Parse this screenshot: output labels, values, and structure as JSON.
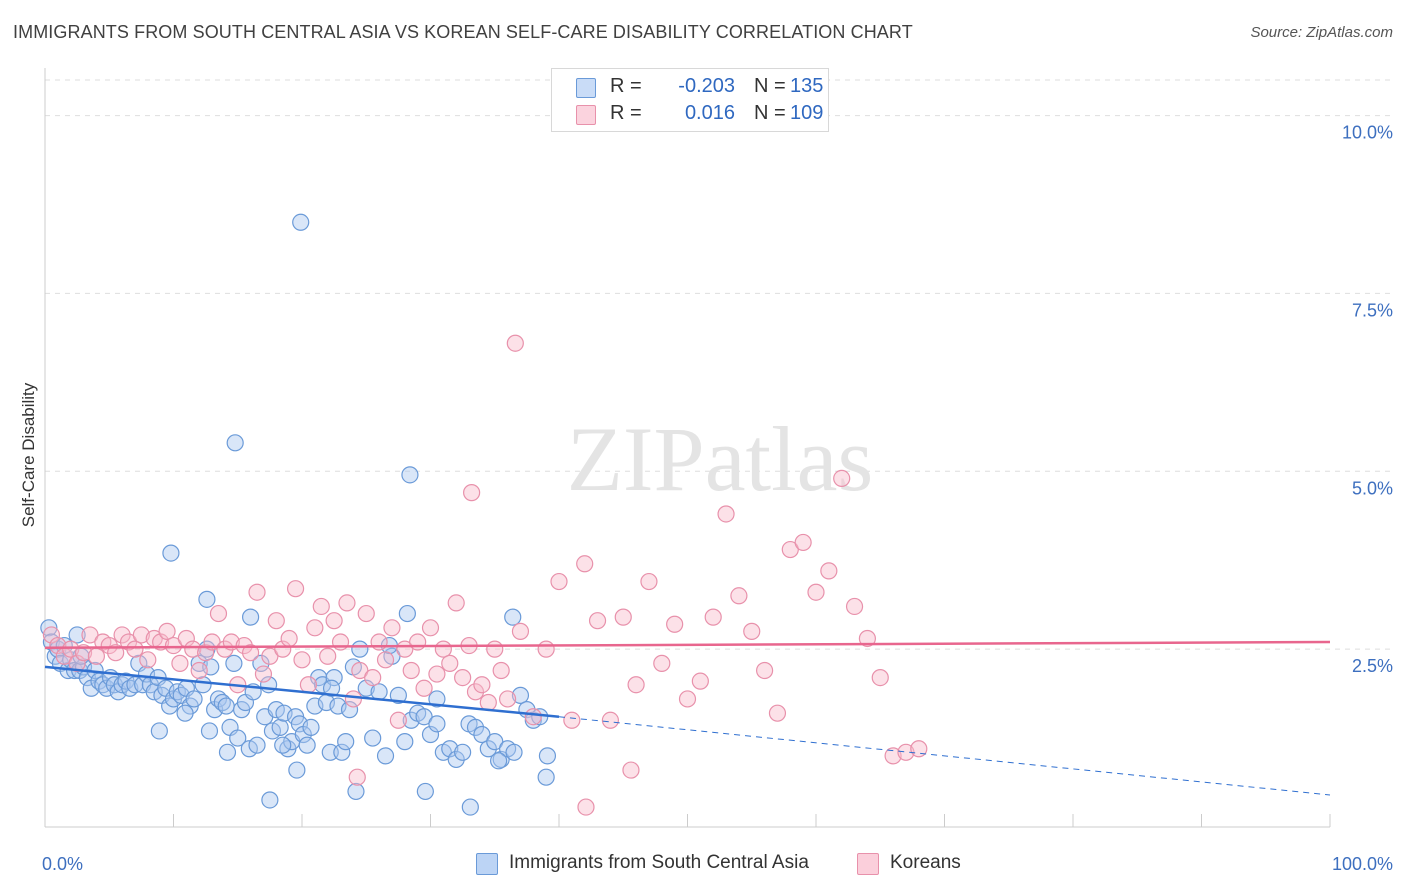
{
  "title": "IMMIGRANTS FROM SOUTH CENTRAL ASIA VS KOREAN SELF-CARE DISABILITY CORRELATION CHART",
  "source": "Source: ZipAtlas.com",
  "watermark": "ZIPatlas",
  "legend": {
    "r_label": "R =",
    "n_label": "N =",
    "rows": [
      {
        "r": "-0.203",
        "n": "135",
        "color": "#aac8f0",
        "border": "#6a9ad8"
      },
      {
        "r": "0.016",
        "n": "109",
        "color": "#f8bccd",
        "border": "#e891ab"
      }
    ]
  },
  "bottom_legend": [
    {
      "label": "Immigrants from South Central Asia",
      "color": "#bcd4f5",
      "border": "#6a9ad8"
    },
    {
      "label": "Koreans",
      "color": "#fbcfdb",
      "border": "#e891ab"
    }
  ],
  "chart_data": {
    "type": "scatter",
    "ylabel": "Self-Care Disability",
    "xlabel": "",
    "xlim": [
      0,
      100
    ],
    "ylim": [
      0,
      10.5
    ],
    "x_ticks": [
      "0.0%",
      "100.0%"
    ],
    "y_ticks": [
      {
        "value": 2.5,
        "label": "2.5%"
      },
      {
        "value": 5.0,
        "label": "5.0%"
      },
      {
        "value": 7.5,
        "label": "7.5%"
      },
      {
        "value": 10.0,
        "label": "10.0%"
      }
    ],
    "grid": true,
    "series": [
      {
        "name": "Immigrants from South Central Asia",
        "color": "#6a9ad8",
        "fill": "#aac8f0",
        "trend": {
          "x0": 0,
          "y0": 2.25,
          "x1": 40,
          "y1": 1.55,
          "x_end": 100,
          "y_end": 0.45
        },
        "points": [
          [
            0.3,
            2.8
          ],
          [
            0.5,
            2.6
          ],
          [
            0.8,
            2.4
          ],
          [
            1.0,
            2.5
          ],
          [
            1.2,
            2.3
          ],
          [
            1.5,
            2.55
          ],
          [
            1.8,
            2.2
          ],
          [
            2.0,
            2.35
          ],
          [
            2.3,
            2.2
          ],
          [
            2.5,
            2.7
          ],
          [
            2.7,
            2.2
          ],
          [
            3.0,
            2.25
          ],
          [
            2.8,
            2.4
          ],
          [
            3.3,
            2.1
          ],
          [
            3.6,
            1.95
          ],
          [
            3.9,
            2.2
          ],
          [
            4.2,
            2.05
          ],
          [
            4.5,
            2.0
          ],
          [
            4.8,
            1.95
          ],
          [
            5.1,
            2.1
          ],
          [
            5.4,
            2.0
          ],
          [
            5.7,
            1.9
          ],
          [
            6.0,
            2.0
          ],
          [
            6.3,
            2.05
          ],
          [
            6.6,
            1.95
          ],
          [
            7.0,
            2.0
          ],
          [
            7.3,
            2.3
          ],
          [
            7.6,
            2.0
          ],
          [
            7.9,
            2.15
          ],
          [
            8.2,
            2.0
          ],
          [
            8.5,
            1.9
          ],
          [
            8.8,
            2.1
          ],
          [
            9.1,
            1.85
          ],
          [
            9.4,
            1.95
          ],
          [
            9.7,
            1.7
          ],
          [
            10.0,
            1.8
          ],
          [
            10.3,
            1.9
          ],
          [
            10.6,
            1.85
          ],
          [
            11.0,
            1.95
          ],
          [
            11.3,
            1.7
          ],
          [
            11.6,
            1.8
          ],
          [
            12.0,
            2.3
          ],
          [
            12.3,
            2.0
          ],
          [
            12.6,
            2.5
          ],
          [
            12.9,
            2.25
          ],
          [
            13.2,
            1.65
          ],
          [
            13.5,
            1.8
          ],
          [
            13.8,
            1.75
          ],
          [
            14.1,
            1.7
          ],
          [
            14.4,
            1.4
          ],
          [
            14.7,
            2.3
          ],
          [
            15.0,
            1.25
          ],
          [
            15.3,
            1.65
          ],
          [
            15.6,
            1.75
          ],
          [
            15.9,
            1.1
          ],
          [
            16.2,
            1.9
          ],
          [
            16.5,
            1.15
          ],
          [
            16.8,
            2.3
          ],
          [
            17.1,
            1.55
          ],
          [
            17.4,
            2.0
          ],
          [
            17.7,
            1.35
          ],
          [
            18.0,
            1.65
          ],
          [
            18.3,
            1.4
          ],
          [
            18.6,
            1.6
          ],
          [
            18.9,
            1.1
          ],
          [
            19.2,
            1.2
          ],
          [
            19.5,
            1.55
          ],
          [
            19.8,
            1.45
          ],
          [
            20.1,
            1.3
          ],
          [
            20.4,
            1.15
          ],
          [
            20.7,
            1.4
          ],
          [
            21.0,
            1.7
          ],
          [
            21.3,
            2.1
          ],
          [
            21.6,
            2.0
          ],
          [
            21.9,
            1.75
          ],
          [
            22.2,
            1.05
          ],
          [
            22.5,
            2.1
          ],
          [
            22.8,
            1.7
          ],
          [
            23.1,
            1.05
          ],
          [
            23.4,
            1.2
          ],
          [
            23.7,
            1.65
          ],
          [
            24.0,
            2.25
          ],
          [
            24.5,
            2.5
          ],
          [
            25.0,
            1.95
          ],
          [
            25.5,
            1.25
          ],
          [
            26.0,
            1.9
          ],
          [
            26.5,
            1.0
          ],
          [
            27.0,
            2.4
          ],
          [
            27.5,
            1.85
          ],
          [
            28.0,
            1.2
          ],
          [
            28.5,
            1.5
          ],
          [
            29.0,
            1.6
          ],
          [
            29.5,
            1.55
          ],
          [
            30.0,
            1.3
          ],
          [
            30.5,
            1.45
          ],
          [
            31.0,
            1.05
          ],
          [
            31.5,
            1.1
          ],
          [
            32.0,
            0.95
          ],
          [
            32.5,
            1.05
          ],
          [
            33.0,
            1.45
          ],
          [
            33.5,
            1.4
          ],
          [
            34.0,
            1.3
          ],
          [
            34.5,
            1.1
          ],
          [
            35.0,
            1.2
          ],
          [
            35.5,
            0.95
          ],
          [
            36.0,
            1.1
          ],
          [
            36.5,
            1.05
          ],
          [
            37.0,
            1.85
          ],
          [
            37.5,
            1.65
          ],
          [
            38.0,
            1.5
          ],
          [
            38.5,
            1.55
          ],
          [
            39.0,
            0.7
          ],
          [
            8.9,
            1.35
          ],
          [
            10.9,
            1.6
          ],
          [
            12.8,
            1.35
          ],
          [
            14.2,
            1.05
          ],
          [
            16.0,
            2.95
          ],
          [
            18.5,
            1.15
          ],
          [
            19.6,
            0.8
          ],
          [
            24.2,
            0.5
          ],
          [
            29.6,
            0.5
          ],
          [
            33.1,
            0.28
          ],
          [
            35.3,
            0.93
          ],
          [
            39.1,
            1.0
          ],
          [
            17.5,
            0.38
          ],
          [
            12.6,
            3.2
          ],
          [
            14.8,
            5.4
          ],
          [
            19.9,
            8.5
          ],
          [
            9.8,
            3.85
          ],
          [
            28.4,
            4.95
          ],
          [
            28.2,
            3.0
          ],
          [
            36.4,
            2.95
          ],
          [
            22.3,
            1.95
          ],
          [
            26.8,
            2.55
          ],
          [
            30.5,
            1.8
          ]
        ]
      },
      {
        "name": "Koreans",
        "color": "#e891ab",
        "fill": "#f8bccd",
        "trend": {
          "x0": 0,
          "y0": 2.52,
          "x1": 100,
          "y1": 2.6
        },
        "points": [
          [
            0.5,
            2.7
          ],
          [
            1.0,
            2.55
          ],
          [
            1.5,
            2.4
          ],
          [
            2.0,
            2.5
          ],
          [
            2.5,
            2.3
          ],
          [
            3.0,
            2.45
          ],
          [
            3.5,
            2.7
          ],
          [
            4.0,
            2.4
          ],
          [
            4.5,
            2.6
          ],
          [
            5.0,
            2.55
          ],
          [
            5.5,
            2.45
          ],
          [
            6.0,
            2.7
          ],
          [
            6.5,
            2.6
          ],
          [
            7.0,
            2.5
          ],
          [
            7.5,
            2.7
          ],
          [
            8.0,
            2.35
          ],
          [
            8.5,
            2.65
          ],
          [
            9.0,
            2.6
          ],
          [
            9.5,
            2.75
          ],
          [
            10.0,
            2.55
          ],
          [
            10.5,
            2.3
          ],
          [
            11.0,
            2.65
          ],
          [
            11.5,
            2.5
          ],
          [
            12.0,
            2.2
          ],
          [
            12.5,
            2.45
          ],
          [
            13.0,
            2.6
          ],
          [
            13.5,
            3.0
          ],
          [
            14.0,
            2.5
          ],
          [
            14.5,
            2.6
          ],
          [
            15.0,
            2.0
          ],
          [
            15.5,
            2.55
          ],
          [
            16.0,
            2.45
          ],
          [
            16.5,
            3.3
          ],
          [
            17.0,
            2.15
          ],
          [
            17.5,
            2.4
          ],
          [
            18.0,
            2.9
          ],
          [
            18.5,
            2.5
          ],
          [
            19.0,
            2.65
          ],
          [
            19.5,
            3.35
          ],
          [
            20.0,
            2.35
          ],
          [
            20.5,
            2.0
          ],
          [
            21.0,
            2.8
          ],
          [
            21.5,
            3.1
          ],
          [
            22.0,
            2.4
          ],
          [
            22.5,
            2.9
          ],
          [
            23.0,
            2.6
          ],
          [
            23.5,
            3.15
          ],
          [
            24.0,
            1.8
          ],
          [
            24.5,
            2.2
          ],
          [
            25.0,
            3.0
          ],
          [
            25.5,
            2.1
          ],
          [
            26.0,
            2.6
          ],
          [
            26.5,
            2.35
          ],
          [
            27.0,
            2.8
          ],
          [
            27.5,
            1.5
          ],
          [
            28.0,
            2.5
          ],
          [
            28.5,
            2.2
          ],
          [
            29.0,
            2.6
          ],
          [
            29.5,
            1.95
          ],
          [
            30.0,
            2.8
          ],
          [
            30.5,
            2.15
          ],
          [
            31.0,
            2.5
          ],
          [
            31.5,
            2.3
          ],
          [
            32.0,
            3.15
          ],
          [
            32.5,
            2.1
          ],
          [
            33.0,
            2.55
          ],
          [
            33.5,
            1.9
          ],
          [
            34.0,
            2.0
          ],
          [
            34.5,
            1.75
          ],
          [
            35.0,
            2.5
          ],
          [
            35.5,
            2.2
          ],
          [
            36.0,
            1.8
          ],
          [
            37.0,
            2.75
          ],
          [
            38.0,
            1.55
          ],
          [
            39.0,
            2.5
          ],
          [
            40.0,
            3.45
          ],
          [
            41.0,
            1.5
          ],
          [
            42.0,
            3.7
          ],
          [
            43.0,
            2.9
          ],
          [
            44.0,
            1.5
          ],
          [
            45.0,
            2.95
          ],
          [
            46.0,
            2.0
          ],
          [
            47.0,
            3.45
          ],
          [
            48.0,
            2.3
          ],
          [
            49.0,
            2.85
          ],
          [
            50.0,
            1.8
          ],
          [
            51.0,
            2.05
          ],
          [
            52.0,
            2.95
          ],
          [
            53.0,
            4.4
          ],
          [
            54.0,
            3.25
          ],
          [
            55.0,
            2.75
          ],
          [
            56.0,
            2.2
          ],
          [
            57.0,
            1.6
          ],
          [
            58.0,
            3.9
          ],
          [
            59.0,
            4.0
          ],
          [
            60.0,
            3.3
          ],
          [
            61.0,
            3.6
          ],
          [
            62.0,
            4.9
          ],
          [
            63.0,
            3.1
          ],
          [
            64.0,
            2.65
          ],
          [
            65.0,
            2.1
          ],
          [
            66.0,
            1.0
          ],
          [
            67.0,
            1.05
          ],
          [
            68.0,
            1.1
          ],
          [
            36.6,
            6.8
          ],
          [
            33.2,
            4.7
          ],
          [
            24.3,
            0.7
          ],
          [
            45.6,
            0.8
          ],
          [
            42.1,
            0.28
          ]
        ]
      }
    ]
  }
}
